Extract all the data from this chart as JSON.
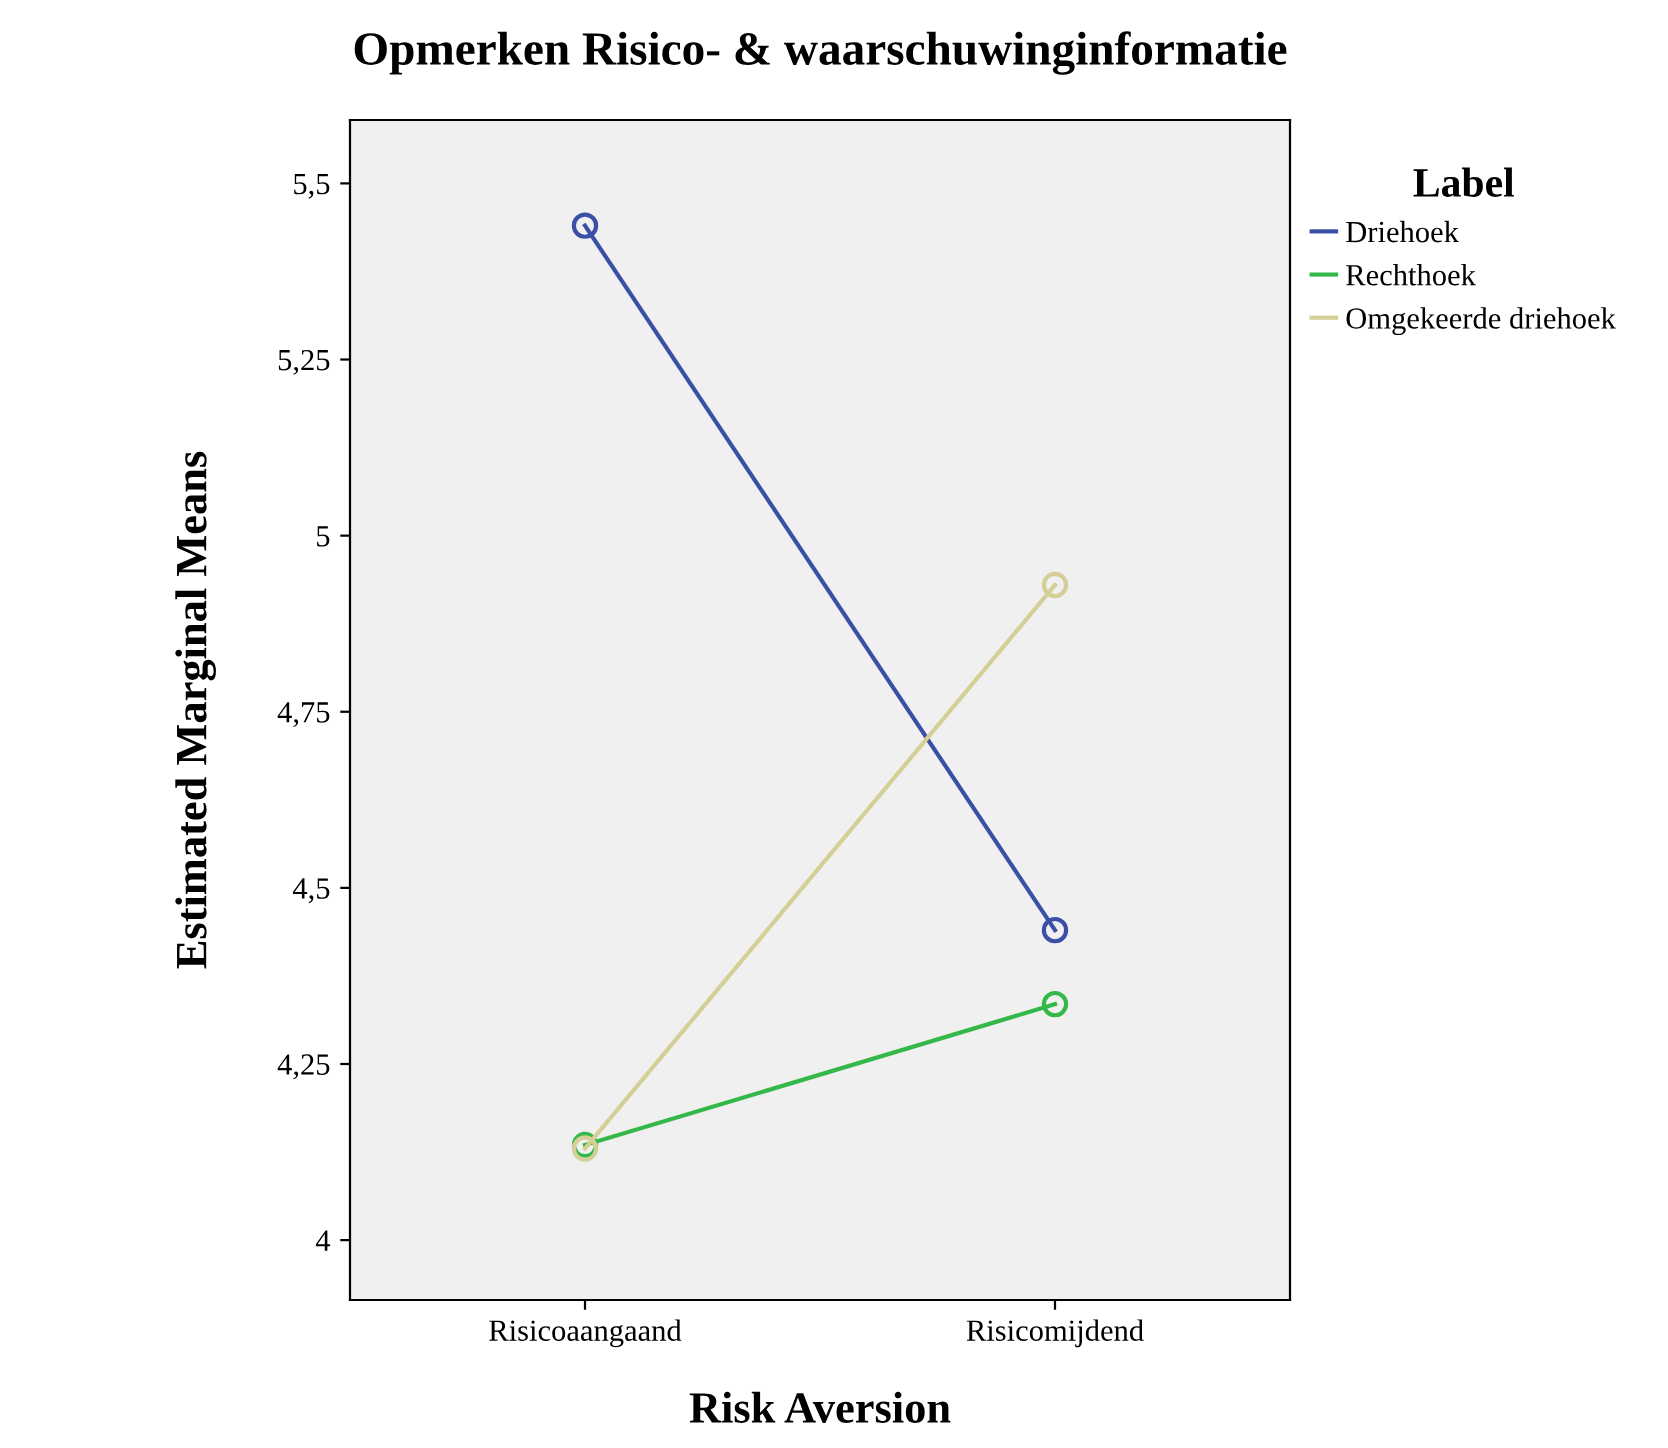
{
  "chart_data": {
    "type": "line",
    "title": "Opmerken Risico- & waarschuwinginformatie",
    "xlabel": "Risk Aversion",
    "ylabel": "Estimated Marginal Means",
    "legend_title": "Label",
    "categories": [
      "Risicoaangaand",
      "Risicomijdend"
    ],
    "series": [
      {
        "name": "Driehoek",
        "color": "#3b4fa6",
        "values": [
          5.44,
          4.44
        ]
      },
      {
        "name": "Rechthoek",
        "color": "#35b84a",
        "values": [
          4.135,
          4.335
        ]
      },
      {
        "name": "Omgekeerde driehoek",
        "color": "#d3cf97",
        "values": [
          4.13,
          4.93
        ]
      }
    ],
    "ylim": [
      3.915,
      5.59
    ],
    "yticks": [
      4,
      {
        "value": 4.25,
        "label": "4,25"
      },
      {
        "value": 4.5,
        "label": "4,5"
      },
      {
        "value": 4.75,
        "label": "4,75"
      },
      5,
      {
        "value": 5.25,
        "label": "5,25"
      },
      {
        "value": 5.5,
        "label": "5,5"
      }
    ],
    "marker": "circle",
    "line_style": "solid",
    "grid": false,
    "legend": "right"
  }
}
